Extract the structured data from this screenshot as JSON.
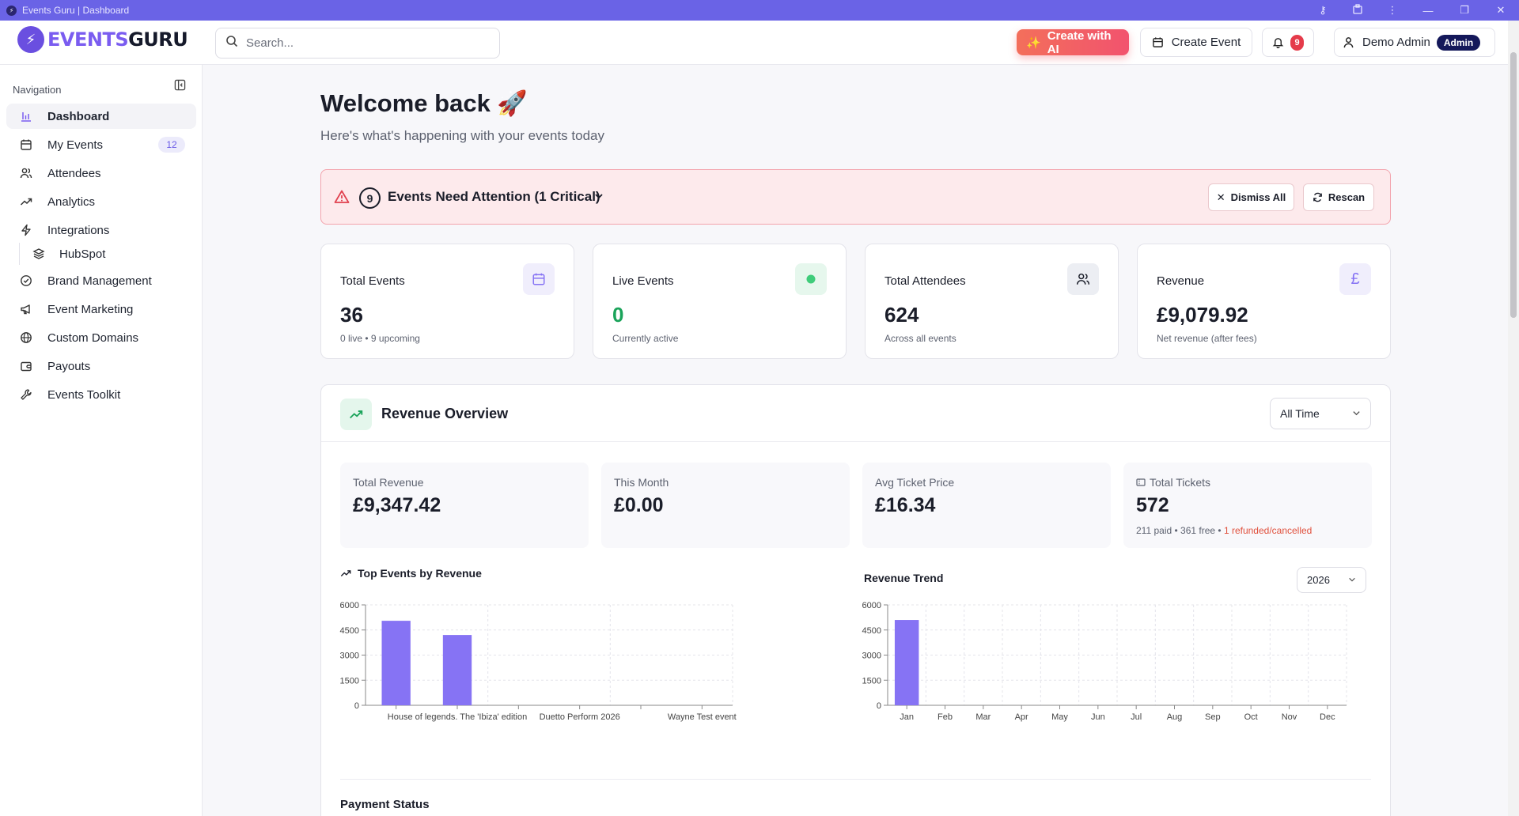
{
  "window": {
    "title": "Events Guru | Dashboard"
  },
  "brand": {
    "word1": "EVENTS",
    "word2": "GURU"
  },
  "header": {
    "search_placeholder": "Search...",
    "create_ai": "Create with AI",
    "create_event": "Create Event",
    "notifications_count": "9",
    "user_name": "Demo Admin",
    "user_role": "Admin"
  },
  "sidebar": {
    "title": "Navigation",
    "items": [
      {
        "label": "Dashboard",
        "icon": "bar-chart-icon"
      },
      {
        "label": "My Events",
        "icon": "calendar-icon",
        "count": "12"
      },
      {
        "label": "Attendees",
        "icon": "users-icon"
      },
      {
        "label": "Analytics",
        "icon": "trend-icon"
      },
      {
        "label": "Integrations",
        "icon": "bolt-icon"
      },
      {
        "label": "HubSpot",
        "icon": "layers-icon"
      },
      {
        "label": "Brand Management",
        "icon": "badge-check-icon"
      },
      {
        "label": "Event Marketing",
        "icon": "megaphone-icon"
      },
      {
        "label": "Custom Domains",
        "icon": "globe-icon"
      },
      {
        "label": "Payouts",
        "icon": "wallet-icon"
      },
      {
        "label": "Events Toolkit",
        "icon": "wrench-icon"
      }
    ]
  },
  "main": {
    "welcome": "Welcome back 🚀",
    "subtitle": "Here's what's happening with your events today",
    "alert": {
      "count": "9",
      "title": "Events Need Attention (1 Critical)",
      "dismiss": "Dismiss All",
      "rescan": "Rescan"
    },
    "stats": [
      {
        "label": "Total Events",
        "value": "36",
        "note": "0 live • 9 upcoming",
        "icon": "calendar-icon",
        "color": "#f0eefc"
      },
      {
        "label": "Live Events",
        "value": "0",
        "note": "Currently active",
        "icon": "live-dot-icon",
        "color": "#e6f7ed"
      },
      {
        "label": "Total Attendees",
        "value": "624",
        "note": "Across all events",
        "icon": "users-icon",
        "color": "#eceef3"
      },
      {
        "label": "Revenue",
        "value": "£9,079.92",
        "note": "Net revenue (after fees)",
        "icon": "pound-icon",
        "color": "#f0eefc"
      }
    ],
    "revenue": {
      "title": "Revenue Overview",
      "period": "All Time",
      "minis": [
        {
          "label": "Total Revenue",
          "value": "£9,347.42"
        },
        {
          "label": "This Month",
          "value": "£0.00"
        },
        {
          "label": "Avg Ticket Price",
          "value": "£16.34"
        },
        {
          "label": "Total Tickets",
          "value": "572",
          "note_a": "211 paid • 361 free • ",
          "note_b": "1 refunded/cancelled"
        }
      ],
      "top_events_title": "Top Events by Revenue",
      "trend_title": "Revenue Trend",
      "year": "2026",
      "payment_status": "Payment Status"
    }
  },
  "chart_data": [
    {
      "type": "bar",
      "title": "Top Events by Revenue",
      "categories": [
        "",
        "House of legends. The 'Ibiza' edition",
        "",
        "Duetto Perform 2026",
        "",
        "Wayne Test event"
      ],
      "values": [
        5050,
        4200,
        0,
        0,
        0,
        0
      ],
      "ylim": [
        0,
        6000
      ],
      "yticks": [
        0,
        1500,
        3000,
        4500,
        6000
      ],
      "grid": true,
      "color": "#8673f4"
    },
    {
      "type": "bar",
      "title": "Revenue Trend",
      "categories": [
        "Jan",
        "Feb",
        "Mar",
        "Apr",
        "May",
        "Jun",
        "Jul",
        "Aug",
        "Sep",
        "Oct",
        "Nov",
        "Dec"
      ],
      "values": [
        5100,
        0,
        0,
        0,
        0,
        0,
        0,
        0,
        0,
        0,
        0,
        0
      ],
      "ylim": [
        0,
        6000
      ],
      "yticks": [
        0,
        1500,
        3000,
        4500,
        6000
      ],
      "grid": true,
      "color": "#8673f4"
    }
  ]
}
